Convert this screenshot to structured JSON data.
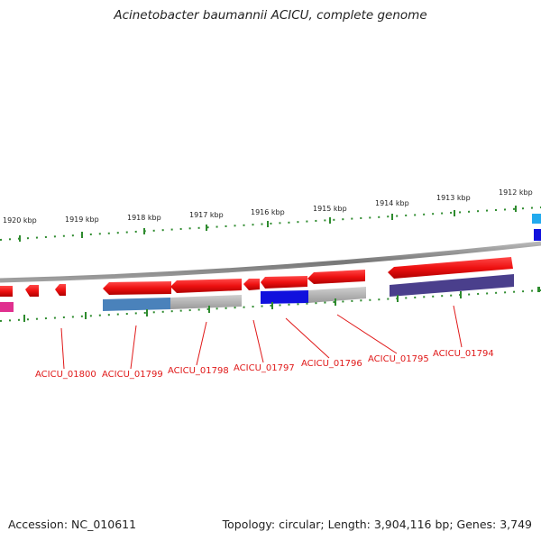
{
  "header": {
    "title": "Acinetobacter baumannii ACICU, complete genome"
  },
  "footer": {
    "accession": "Accession: NC_010611",
    "topology": "Topology: circular; Length: 3,904,116 bp; Genes: 3,749"
  },
  "scale": {
    "tick_labels": [
      "1920 kbp",
      "1919 kbp",
      "1918 kbp",
      "1917 kbp",
      "1916 kbp",
      "1915 kbp",
      "1914 kbp",
      "1913 kbp",
      "1912 kbp"
    ]
  },
  "genes": {
    "labels": [
      "ACICU_01800",
      "ACICU_01799",
      "ACICU_01798",
      "ACICU_01797",
      "ACICU_01796",
      "ACICU_01795",
      "ACICU_01794"
    ]
  },
  "colors": {
    "cds": "#ee1111",
    "tick": "#2e8b2e",
    "backbone": "#8a8a8a",
    "label": "#e01818",
    "feature_blue": "#1111dd",
    "feature_steelblue": "#4a82bb",
    "feature_gray": "#b8b8b8",
    "feature_purple": "#4a3f8c",
    "feature_magenta": "#e0308f",
    "feature_cyan": "#22aaee"
  }
}
